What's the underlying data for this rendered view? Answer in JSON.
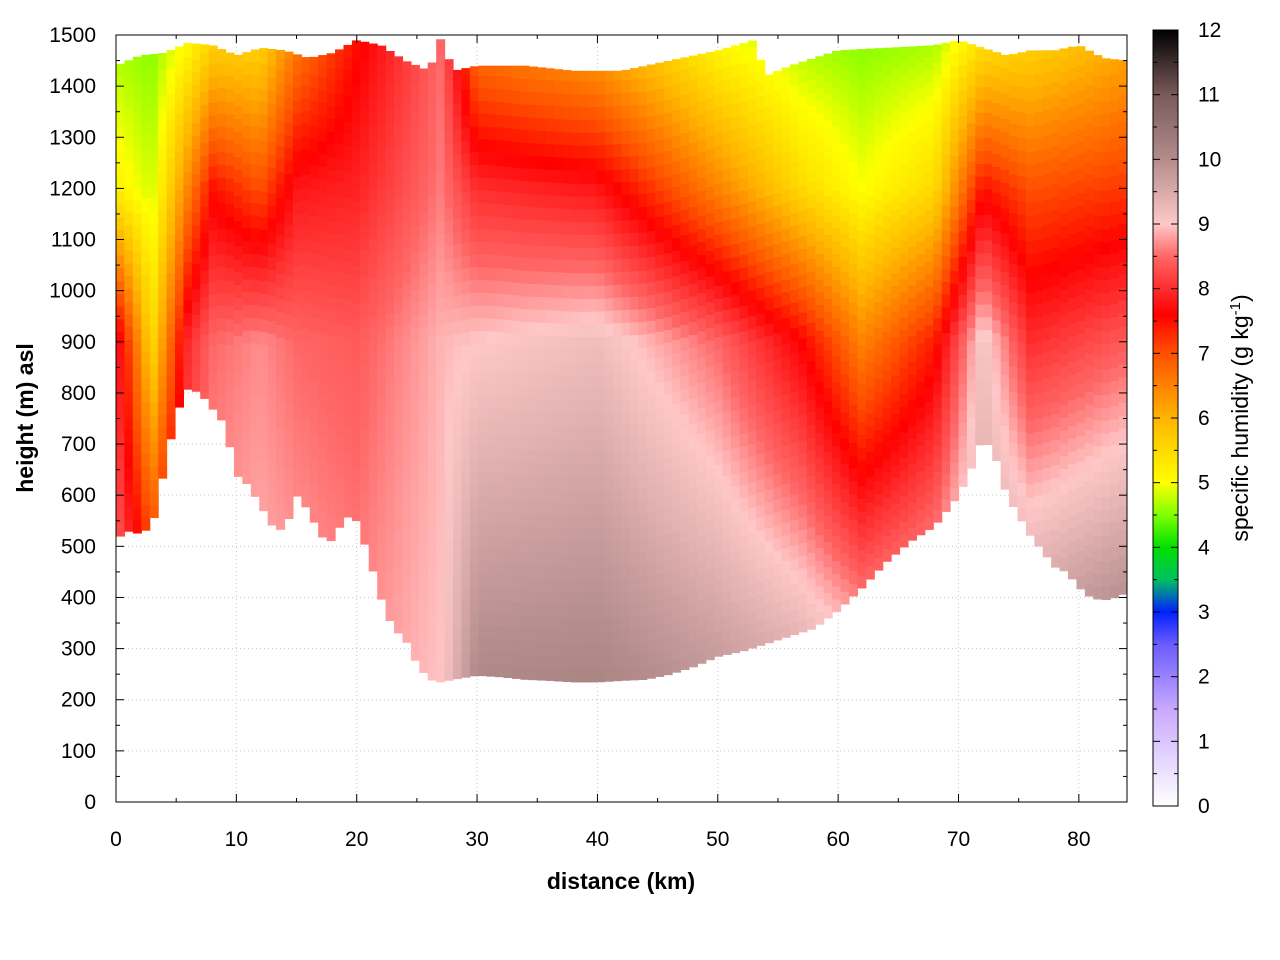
{
  "chart_data": {
    "type": "heatmap",
    "title": "",
    "xlabel": "distance (km)",
    "ylabel": "height (m) asl",
    "xlim": [
      0,
      84
    ],
    "ylim": [
      0,
      1500
    ],
    "x_ticks": [
      0,
      10,
      20,
      30,
      40,
      50,
      60,
      70,
      80
    ],
    "y_ticks": [
      0,
      100,
      200,
      300,
      400,
      500,
      600,
      700,
      800,
      900,
      1000,
      1100,
      1200,
      1300,
      1400,
      1500
    ],
    "grid": true,
    "colorbar": {
      "label_prefix": "specific humidity (g kg",
      "label_exp": "-1",
      "label_suffix": ")",
      "range": [
        0,
        12
      ],
      "ticks": [
        0,
        1,
        2,
        3,
        4,
        5,
        6,
        7,
        8,
        9,
        10,
        11,
        12
      ],
      "stops": [
        {
          "value": 0,
          "color": "#ffffff"
        },
        {
          "value": 1.5,
          "color": "#c8a8ff"
        },
        {
          "value": 2.5,
          "color": "#6b5cff"
        },
        {
          "value": 3.0,
          "color": "#0020ff"
        },
        {
          "value": 3.5,
          "color": "#00c060"
        },
        {
          "value": 4.0,
          "color": "#00e000"
        },
        {
          "value": 4.5,
          "color": "#80ff00"
        },
        {
          "value": 5.0,
          "color": "#ffff00"
        },
        {
          "value": 6.0,
          "color": "#ffb400"
        },
        {
          "value": 7.0,
          "color": "#ff5000"
        },
        {
          "value": 7.6,
          "color": "#ff0000"
        },
        {
          "value": 8.5,
          "color": "#ff6666"
        },
        {
          "value": 9.0,
          "color": "#ffc8c8"
        },
        {
          "value": 10.0,
          "color": "#b48c8c"
        },
        {
          "value": 11.0,
          "color": "#7a5a5a"
        },
        {
          "value": 12.0,
          "color": "#000000"
        }
      ]
    },
    "terrain": {
      "x": [
        0,
        1,
        2,
        3,
        4,
        5,
        6,
        7,
        8,
        9,
        10,
        11,
        12,
        13,
        14,
        15,
        16,
        17,
        18,
        19,
        20,
        21,
        22,
        23,
        24,
        25,
        26,
        27,
        28,
        30,
        32,
        34,
        36,
        38,
        40,
        42,
        44,
        46,
        48,
        50,
        52,
        54,
        56,
        58,
        60,
        62,
        64,
        66,
        68,
        70,
        71,
        72,
        73,
        74,
        75,
        76,
        77,
        78,
        79,
        80,
        81,
        82,
        83,
        84
      ],
      "y": [
        515,
        530,
        525,
        540,
        650,
        760,
        810,
        800,
        770,
        740,
        640,
        620,
        580,
        540,
        530,
        600,
        570,
        520,
        510,
        560,
        550,
        480,
        400,
        340,
        320,
        270,
        240,
        235,
        240,
        248,
        245,
        240,
        238,
        235,
        235,
        238,
        240,
        250,
        265,
        285,
        295,
        310,
        325,
        340,
        375,
        420,
        470,
        510,
        540,
        600,
        650,
        715,
        680,
        600,
        560,
        520,
        490,
        460,
        450,
        420,
        400,
        395,
        400,
        410
      ]
    },
    "top": {
      "x": [
        0,
        2,
        4,
        6,
        8,
        10,
        12,
        14,
        16,
        18,
        20,
        22,
        24,
        26,
        27,
        28,
        30,
        34,
        38,
        42,
        46,
        50,
        53,
        54,
        56,
        60,
        64,
        68,
        70,
        72,
        74,
        76,
        78,
        80,
        82,
        84
      ],
      "y": [
        1440,
        1460,
        1465,
        1485,
        1480,
        1460,
        1475,
        1470,
        1455,
        1465,
        1490,
        1480,
        1450,
        1430,
        1495,
        1430,
        1440,
        1440,
        1430,
        1430,
        1450,
        1470,
        1490,
        1420,
        1440,
        1470,
        1475,
        1480,
        1490,
        1475,
        1460,
        1470,
        1470,
        1480,
        1455,
        1450
      ]
    },
    "anchors": [
      {
        "x": 0,
        "h": [
          9.0,
          8.0,
          5.2,
          4.6
        ]
      },
      {
        "x": 3,
        "h": [
          9.0,
          5.5,
          4.8,
          4.5
        ]
      },
      {
        "x": 6,
        "h": [
          9.0,
          8.0,
          6.5,
          5.0
        ]
      },
      {
        "x": 8,
        "h": [
          9.0,
          8.5,
          7.5,
          5.5
        ]
      },
      {
        "x": 12,
        "h": [
          9.0,
          8.7,
          7.0,
          5.5
        ]
      },
      {
        "x": 15,
        "h": [
          9.0,
          8.5,
          7.8,
          6.5
        ]
      },
      {
        "x": 20,
        "h": [
          8.8,
          8.4,
          7.9,
          7.5
        ]
      },
      {
        "x": 27,
        "h": [
          9.0,
          8.9,
          8.6,
          8.5
        ]
      },
      {
        "x": 30,
        "h": [
          10.5,
          9.0,
          8.0,
          6.5
        ]
      },
      {
        "x": 40,
        "h": [
          10.5,
          9.2,
          7.8,
          6.0
        ]
      },
      {
        "x": 50,
        "h": [
          10.3,
          8.5,
          6.5,
          5.0
        ]
      },
      {
        "x": 57,
        "h": [
          10.3,
          7.6,
          5.5,
          4.6
        ]
      },
      {
        "x": 62,
        "h": [
          10.3,
          6.5,
          5.0,
          4.5
        ]
      },
      {
        "x": 68,
        "h": [
          10.2,
          7.4,
          5.5,
          4.6
        ]
      },
      {
        "x": 72,
        "h": [
          10.0,
          9.2,
          7.5,
          5.3
        ]
      },
      {
        "x": 76,
        "h": [
          10.8,
          8.0,
          7.0,
          5.5
        ]
      },
      {
        "x": 84,
        "h": [
          11.2,
          8.4,
          7.2,
          6.0
        ]
      }
    ],
    "anchor_heights": [
      0,
      900,
      1200,
      1500
    ]
  }
}
